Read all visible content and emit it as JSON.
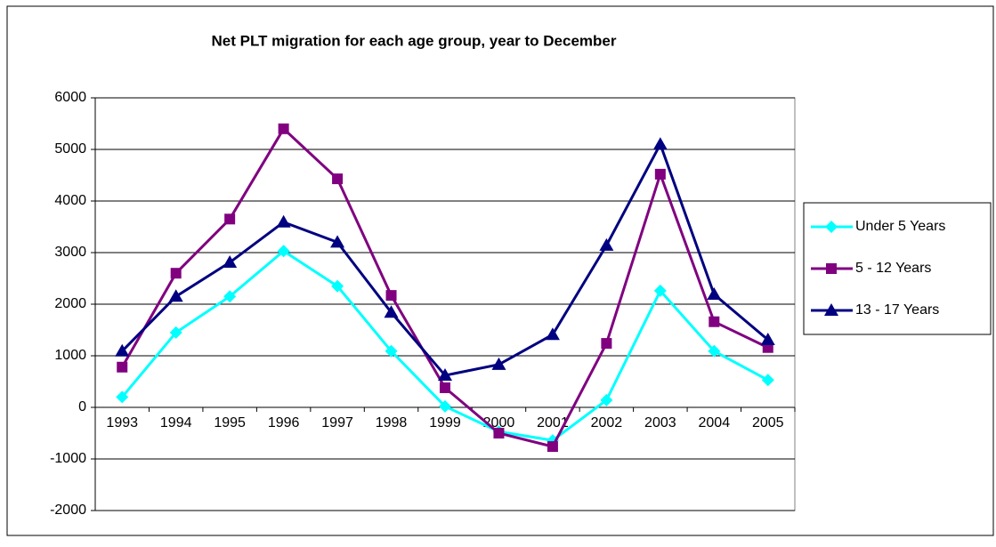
{
  "chart_data": {
    "type": "line",
    "title": "Net PLT migration for each age group, year to December",
    "categories": [
      "1993",
      "1994",
      "1995",
      "1996",
      "1997",
      "1998",
      "1999",
      "2000",
      "2001",
      "2002",
      "2003",
      "2004",
      "2005"
    ],
    "series": [
      {
        "name": "Under 5 Years",
        "color": "#00ffff",
        "marker": "diamond",
        "values": [
          200,
          1450,
          2150,
          3030,
          2350,
          1090,
          20,
          -470,
          -640,
          140,
          2260,
          1090,
          530
        ]
      },
      {
        "name": "5 - 12 Years",
        "color": "#800080",
        "marker": "square",
        "values": [
          780,
          2600,
          3650,
          5400,
          4430,
          2170,
          380,
          -500,
          -760,
          1240,
          4520,
          1660,
          1160
        ]
      },
      {
        "name": "13 - 17 Years",
        "color": "#000080",
        "marker": "triangle",
        "values": [
          1090,
          2150,
          2810,
          3590,
          3200,
          1840,
          620,
          830,
          1410,
          3140,
          5100,
          2190,
          1310
        ]
      }
    ],
    "ylim": [
      -2000,
      6000
    ],
    "yticks": [
      -2000,
      -1000,
      0,
      1000,
      2000,
      3000,
      4000,
      5000,
      6000
    ],
    "grid": true,
    "legend": "right"
  }
}
